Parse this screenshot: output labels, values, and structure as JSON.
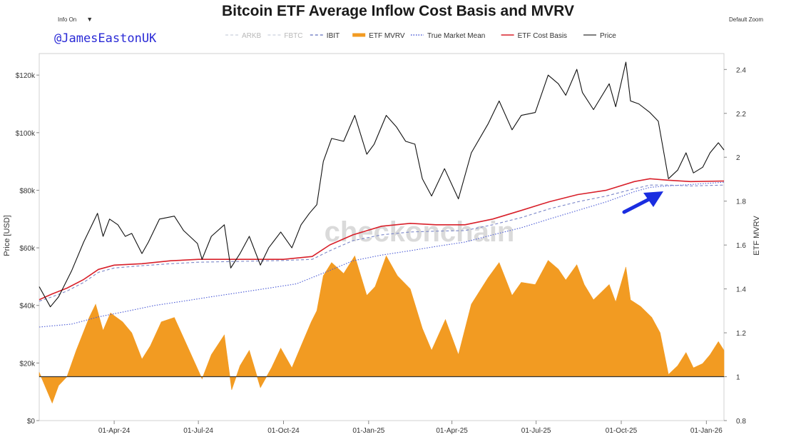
{
  "header": {
    "title": "Bitcoin ETF Average Inflow Cost Basis and MVRV",
    "info_toggle": "Info On",
    "info_caret": "▼",
    "zoom_label": "Default Zoom",
    "handle": "@JamesEastonUK",
    "watermark": "checkonchain"
  },
  "chart_data": {
    "type": "line",
    "title": "Bitcoin ETF Average Inflow Cost Basis and MVRV",
    "ylabel": "Price [USD]",
    "y2label": "ETF MVRV",
    "xlim": [
      "2024-01-11",
      "2026-01-20"
    ],
    "ylim": [
      0,
      125000
    ],
    "y2lim": [
      0.8,
      2.44
    ],
    "x_ticks": [
      {
        "date": "2024-04-01",
        "label": "01-Apr-24"
      },
      {
        "date": "2024-07-01",
        "label": "01-Jul-24"
      },
      {
        "date": "2024-10-01",
        "label": "01-Oct-24"
      },
      {
        "date": "2025-01-01",
        "label": "01-Jan-25"
      },
      {
        "date": "2025-04-01",
        "label": "01-Apr-25"
      },
      {
        "date": "2025-07-01",
        "label": "01-Jul-25"
      },
      {
        "date": "2025-10-01",
        "label": "01-Oct-25"
      },
      {
        "date": "2026-01-01",
        "label": "01-Jan-26"
      }
    ],
    "y_ticks": [
      {
        "value": 0,
        "label": "$0"
      },
      {
        "value": 20000,
        "label": "$20k"
      },
      {
        "value": 40000,
        "label": "$40k"
      },
      {
        "value": 60000,
        "label": "$60k"
      },
      {
        "value": 80000,
        "label": "$80k"
      },
      {
        "value": 100000,
        "label": "$100k"
      },
      {
        "value": 120000,
        "label": "$120k"
      }
    ],
    "y2_ticks": [
      {
        "value": 0.8,
        "label": "0.8"
      },
      {
        "value": 1.0,
        "label": "1"
      },
      {
        "value": 1.2,
        "label": "1.2"
      },
      {
        "value": 1.4,
        "label": "1.4"
      },
      {
        "value": 1.6,
        "label": "1.6"
      },
      {
        "value": 1.8,
        "label": "1.8"
      },
      {
        "value": 2.0,
        "label": "2"
      },
      {
        "value": 2.2,
        "label": "2.2"
      },
      {
        "value": 2.4,
        "label": "2.4"
      }
    ],
    "legend_position": "top",
    "legend": [
      {
        "name": "ARKB",
        "style": "dashed",
        "color": "#d4d8e4",
        "muted": true
      },
      {
        "name": "FBTC",
        "style": "dashed",
        "color": "#d4d8e4",
        "muted": true
      },
      {
        "name": "IBIT",
        "style": "dashed",
        "color": "#7a86c8",
        "muted": false
      },
      {
        "name": "ETF MVRV",
        "style": "area",
        "color": "#f29b22",
        "muted": false
      },
      {
        "name": "True Market Mean",
        "style": "dotted",
        "color": "#4b5bd6",
        "muted": false
      },
      {
        "name": "ETF Cost Basis",
        "style": "solid",
        "color": "#d8202a",
        "muted": false
      },
      {
        "name": "Price",
        "style": "solid",
        "color": "#555555",
        "muted": false
      }
    ],
    "series": [
      {
        "name": "Price",
        "axis": "left",
        "color": "#111111",
        "points": [
          [
            "2024-01-11",
            46500
          ],
          [
            "2024-01-23",
            39500
          ],
          [
            "2024-02-01",
            43000
          ],
          [
            "2024-02-15",
            52000
          ],
          [
            "2024-02-28",
            62000
          ],
          [
            "2024-03-05",
            66000
          ],
          [
            "2024-03-14",
            72000
          ],
          [
            "2024-03-20",
            64000
          ],
          [
            "2024-03-27",
            70000
          ],
          [
            "2024-04-05",
            68000
          ],
          [
            "2024-04-13",
            64000
          ],
          [
            "2024-04-20",
            65000
          ],
          [
            "2024-05-01",
            58000
          ],
          [
            "2024-05-08",
            62000
          ],
          [
            "2024-05-20",
            70000
          ],
          [
            "2024-06-05",
            71000
          ],
          [
            "2024-06-15",
            66000
          ],
          [
            "2024-06-30",
            61500
          ],
          [
            "2024-07-05",
            56000
          ],
          [
            "2024-07-15",
            64000
          ],
          [
            "2024-07-29",
            68000
          ],
          [
            "2024-08-05",
            53000
          ],
          [
            "2024-08-15",
            58000
          ],
          [
            "2024-08-25",
            64000
          ],
          [
            "2024-09-06",
            54000
          ],
          [
            "2024-09-15",
            60000
          ],
          [
            "2024-09-28",
            65500
          ],
          [
            "2024-10-10",
            60000
          ],
          [
            "2024-10-20",
            68000
          ],
          [
            "2024-10-29",
            72000
          ],
          [
            "2024-11-06",
            75000
          ],
          [
            "2024-11-13",
            90000
          ],
          [
            "2024-11-22",
            98000
          ],
          [
            "2024-12-05",
            97000
          ],
          [
            "2024-12-17",
            106000
          ],
          [
            "2024-12-30",
            92500
          ],
          [
            "2025-01-07",
            96000
          ],
          [
            "2025-01-20",
            106000
          ],
          [
            "2025-01-31",
            102000
          ],
          [
            "2025-02-10",
            97000
          ],
          [
            "2025-02-20",
            96000
          ],
          [
            "2025-02-28",
            84000
          ],
          [
            "2025-03-10",
            78000
          ],
          [
            "2025-03-24",
            87500
          ],
          [
            "2025-04-08",
            77000
          ],
          [
            "2025-04-22",
            93000
          ],
          [
            "2025-05-10",
            103000
          ],
          [
            "2025-05-22",
            111000
          ],
          [
            "2025-06-05",
            101000
          ],
          [
            "2025-06-15",
            106000
          ],
          [
            "2025-06-30",
            107000
          ],
          [
            "2025-07-14",
            120000
          ],
          [
            "2025-07-25",
            117000
          ],
          [
            "2025-08-02",
            113000
          ],
          [
            "2025-08-14",
            122000
          ],
          [
            "2025-08-20",
            114000
          ],
          [
            "2025-09-01",
            108000
          ],
          [
            "2025-09-18",
            117000
          ],
          [
            "2025-09-25",
            109000
          ],
          [
            "2025-10-06",
            124500
          ],
          [
            "2025-10-11",
            111000
          ],
          [
            "2025-10-20",
            110000
          ],
          [
            "2025-11-01",
            107000
          ],
          [
            "2025-11-10",
            104000
          ],
          [
            "2025-11-21",
            84000
          ],
          [
            "2025-12-01",
            87000
          ],
          [
            "2025-12-10",
            93000
          ],
          [
            "2025-12-18",
            86000
          ],
          [
            "2025-12-28",
            88000
          ],
          [
            "2026-01-05",
            93000
          ],
          [
            "2026-01-14",
            96500
          ],
          [
            "2026-01-20",
            94000
          ]
        ]
      },
      {
        "name": "ETF Cost Basis",
        "axis": "left",
        "color": "#d8202a",
        "points": [
          [
            "2024-01-11",
            42000
          ],
          [
            "2024-01-25",
            44000
          ],
          [
            "2024-02-10",
            46000
          ],
          [
            "2024-02-28",
            49000
          ],
          [
            "2024-03-15",
            52500
          ],
          [
            "2024-04-01",
            54000
          ],
          [
            "2024-05-01",
            54500
          ],
          [
            "2024-06-01",
            55500
          ],
          [
            "2024-07-01",
            56000
          ],
          [
            "2024-08-01",
            56000
          ],
          [
            "2024-09-01",
            56000
          ],
          [
            "2024-10-01",
            56000
          ],
          [
            "2024-11-01",
            57000
          ],
          [
            "2024-11-20",
            61000
          ],
          [
            "2024-12-15",
            64500
          ],
          [
            "2025-01-15",
            67500
          ],
          [
            "2025-02-15",
            68500
          ],
          [
            "2025-03-15",
            68000
          ],
          [
            "2025-04-15",
            68000
          ],
          [
            "2025-05-15",
            70000
          ],
          [
            "2025-06-15",
            73000
          ],
          [
            "2025-07-15",
            76000
          ],
          [
            "2025-08-15",
            78500
          ],
          [
            "2025-09-15",
            80000
          ],
          [
            "2025-10-15",
            83000
          ],
          [
            "2025-11-01",
            84000
          ],
          [
            "2025-11-20",
            83500
          ],
          [
            "2025-12-15",
            83000
          ],
          [
            "2026-01-20",
            83200
          ]
        ]
      },
      {
        "name": "IBIT",
        "axis": "left",
        "color": "#7a86c8",
        "points": [
          [
            "2024-01-11",
            41500
          ],
          [
            "2024-01-25",
            43000
          ],
          [
            "2024-02-10",
            45000
          ],
          [
            "2024-02-28",
            48000
          ],
          [
            "2024-03-15",
            51500
          ],
          [
            "2024-04-01",
            53000
          ],
          [
            "2024-05-01",
            53800
          ],
          [
            "2024-06-01",
            54500
          ],
          [
            "2024-07-01",
            55000
          ],
          [
            "2024-08-01",
            55200
          ],
          [
            "2024-09-01",
            55400
          ],
          [
            "2024-10-01",
            55600
          ],
          [
            "2024-11-01",
            56000
          ],
          [
            "2024-11-20",
            59000
          ],
          [
            "2024-12-15",
            62500
          ],
          [
            "2025-01-15",
            64500
          ],
          [
            "2025-02-15",
            65500
          ],
          [
            "2025-03-15",
            65800
          ],
          [
            "2025-04-15",
            66000
          ],
          [
            "2025-05-15",
            68000
          ],
          [
            "2025-06-15",
            70500
          ],
          [
            "2025-07-15",
            73500
          ],
          [
            "2025-08-15",
            76000
          ],
          [
            "2025-09-15",
            78000
          ],
          [
            "2025-10-15",
            80500
          ],
          [
            "2025-11-01",
            81800
          ],
          [
            "2025-11-20",
            81800
          ],
          [
            "2025-12-15",
            81500
          ],
          [
            "2026-01-20",
            81800
          ]
        ]
      },
      {
        "name": "True Market Mean",
        "axis": "left",
        "color": "#4b5bd6",
        "points": [
          [
            "2024-01-11",
            32500
          ],
          [
            "2024-02-15",
            33500
          ],
          [
            "2024-03-15",
            36000
          ],
          [
            "2024-04-15",
            38000
          ],
          [
            "2024-05-15",
            40000
          ],
          [
            "2024-06-15",
            41500
          ],
          [
            "2024-07-15",
            43000
          ],
          [
            "2024-08-15",
            44500
          ],
          [
            "2024-09-15",
            46000
          ],
          [
            "2024-10-15",
            47500
          ],
          [
            "2024-11-15",
            51500
          ],
          [
            "2024-12-15",
            55500
          ],
          [
            "2025-01-15",
            57500
          ],
          [
            "2025-02-15",
            59000
          ],
          [
            "2025-03-15",
            60500
          ],
          [
            "2025-04-15",
            62000
          ],
          [
            "2025-05-15",
            64500
          ],
          [
            "2025-06-15",
            67000
          ],
          [
            "2025-07-15",
            70000
          ],
          [
            "2025-08-15",
            73000
          ],
          [
            "2025-09-15",
            76000
          ],
          [
            "2025-10-15",
            79500
          ],
          [
            "2025-11-01",
            81000
          ],
          [
            "2025-11-20",
            81500
          ],
          [
            "2025-12-15",
            82000
          ],
          [
            "2026-01-20",
            82800
          ]
        ]
      },
      {
        "name": "ETF MVRV",
        "axis": "right",
        "color": "#f29b22",
        "baseline": 1.0,
        "points": [
          [
            "2024-01-11",
            1.02
          ],
          [
            "2024-01-18",
            0.95
          ],
          [
            "2024-01-25",
            0.88
          ],
          [
            "2024-02-01",
            0.96
          ],
          [
            "2024-02-10",
            1.0
          ],
          [
            "2024-02-20",
            1.12
          ],
          [
            "2024-03-05",
            1.27
          ],
          [
            "2024-03-12",
            1.33
          ],
          [
            "2024-03-20",
            1.21
          ],
          [
            "2024-03-28",
            1.29
          ],
          [
            "2024-04-10",
            1.25
          ],
          [
            "2024-04-20",
            1.2
          ],
          [
            "2024-05-01",
            1.08
          ],
          [
            "2024-05-10",
            1.14
          ],
          [
            "2024-05-22",
            1.25
          ],
          [
            "2024-06-05",
            1.27
          ],
          [
            "2024-06-20",
            1.13
          ],
          [
            "2024-07-05",
            0.99
          ],
          [
            "2024-07-15",
            1.1
          ],
          [
            "2024-07-29",
            1.19
          ],
          [
            "2024-08-06",
            0.94
          ],
          [
            "2024-08-15",
            1.05
          ],
          [
            "2024-08-25",
            1.12
          ],
          [
            "2024-09-06",
            0.95
          ],
          [
            "2024-09-18",
            1.04
          ],
          [
            "2024-09-28",
            1.13
          ],
          [
            "2024-10-10",
            1.04
          ],
          [
            "2024-10-21",
            1.15
          ],
          [
            "2024-10-31",
            1.25
          ],
          [
            "2024-11-06",
            1.3
          ],
          [
            "2024-11-13",
            1.46
          ],
          [
            "2024-11-22",
            1.52
          ],
          [
            "2024-12-05",
            1.47
          ],
          [
            "2024-12-17",
            1.55
          ],
          [
            "2024-12-30",
            1.37
          ],
          [
            "2025-01-08",
            1.41
          ],
          [
            "2025-01-20",
            1.55
          ],
          [
            "2025-02-01",
            1.46
          ],
          [
            "2025-02-15",
            1.4
          ],
          [
            "2025-02-28",
            1.22
          ],
          [
            "2025-03-10",
            1.12
          ],
          [
            "2025-03-25",
            1.26
          ],
          [
            "2025-04-08",
            1.1
          ],
          [
            "2025-04-22",
            1.33
          ],
          [
            "2025-05-10",
            1.45
          ],
          [
            "2025-05-22",
            1.52
          ],
          [
            "2025-06-05",
            1.37
          ],
          [
            "2025-06-15",
            1.43
          ],
          [
            "2025-06-30",
            1.42
          ],
          [
            "2025-07-14",
            1.53
          ],
          [
            "2025-07-25",
            1.49
          ],
          [
            "2025-08-02",
            1.44
          ],
          [
            "2025-08-14",
            1.51
          ],
          [
            "2025-08-22",
            1.42
          ],
          [
            "2025-09-01",
            1.35
          ],
          [
            "2025-09-18",
            1.42
          ],
          [
            "2025-09-25",
            1.34
          ],
          [
            "2025-10-06",
            1.5
          ],
          [
            "2025-10-11",
            1.35
          ],
          [
            "2025-10-22",
            1.32
          ],
          [
            "2025-11-03",
            1.27
          ],
          [
            "2025-11-12",
            1.2
          ],
          [
            "2025-11-21",
            1.01
          ],
          [
            "2025-12-01",
            1.05
          ],
          [
            "2025-12-10",
            1.11
          ],
          [
            "2025-12-18",
            1.04
          ],
          [
            "2025-12-28",
            1.06
          ],
          [
            "2026-01-05",
            1.1
          ],
          [
            "2026-01-14",
            1.16
          ],
          [
            "2026-01-20",
            1.12
          ]
        ]
      }
    ]
  }
}
